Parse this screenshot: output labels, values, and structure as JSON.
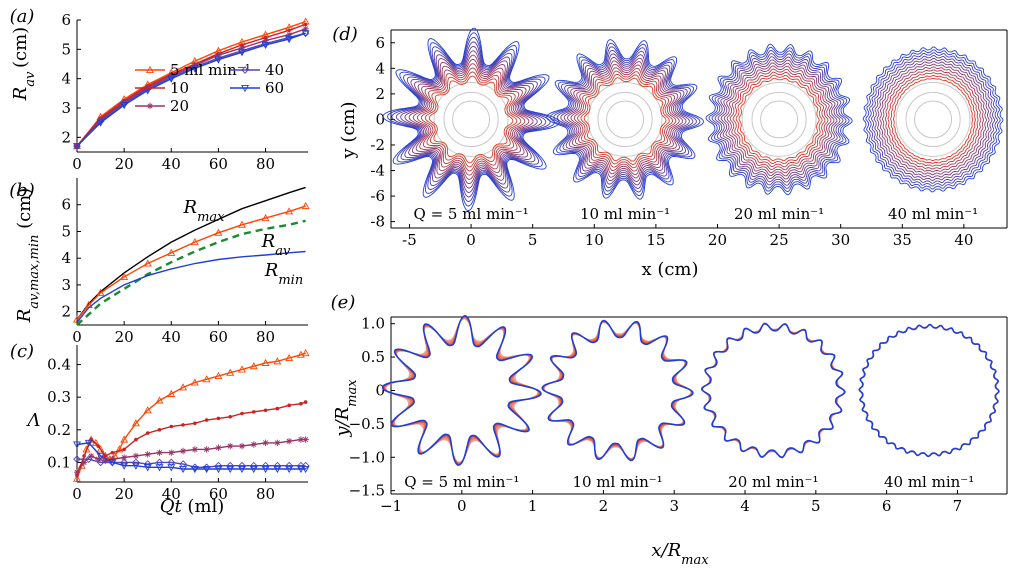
{
  "chart_data": [
    {
      "id": "a",
      "type": "line",
      "panel_label": "(a)",
      "ylabel": "R_av (cm)",
      "xlabel": "",
      "xlim": [
        0,
        98
      ],
      "ylim": [
        1.5,
        6
      ],
      "xticks": [
        0,
        20,
        40,
        60,
        80
      ],
      "yticks": [
        2,
        3,
        4,
        5,
        6
      ],
      "legend": [
        {
          "label": "5 ml min⁻¹",
          "color": "#ff4500",
          "marker": "triangle"
        },
        {
          "label": "10",
          "color": "#cc2222",
          "marker": "dot"
        },
        {
          "label": "20",
          "color": "#993366",
          "marker": "star"
        },
        {
          "label": "40",
          "color": "#5544bb",
          "marker": "diamond"
        },
        {
          "label": "60",
          "color": "#1f3fd6",
          "marker": "triangle-down"
        }
      ],
      "series": [
        {
          "name": "5 ml min⁻¹",
          "color": "#ff4500",
          "x": [
            0,
            10,
            20,
            30,
            40,
            50,
            60,
            70,
            80,
            90,
            97
          ],
          "y": [
            1.7,
            2.7,
            3.3,
            3.8,
            4.2,
            4.6,
            4.95,
            5.25,
            5.5,
            5.75,
            5.95
          ]
        },
        {
          "name": "10",
          "color": "#cc2222",
          "x": [
            0,
            10,
            20,
            30,
            40,
            50,
            60,
            70,
            80,
            90,
            97
          ],
          "y": [
            1.7,
            2.65,
            3.25,
            3.75,
            4.15,
            4.5,
            4.85,
            5.15,
            5.4,
            5.65,
            5.85
          ]
        },
        {
          "name": "20",
          "color": "#993366",
          "x": [
            0,
            10,
            20,
            30,
            40,
            50,
            60,
            70,
            80,
            90,
            97
          ],
          "y": [
            1.7,
            2.6,
            3.2,
            3.7,
            4.1,
            4.45,
            4.8,
            5.05,
            5.3,
            5.5,
            5.7
          ]
        },
        {
          "name": "40",
          "color": "#5544bb",
          "x": [
            0,
            10,
            20,
            30,
            40,
            50,
            60,
            70,
            80,
            90,
            97
          ],
          "y": [
            1.7,
            2.55,
            3.15,
            3.65,
            4.05,
            4.4,
            4.7,
            4.95,
            5.2,
            5.4,
            5.55
          ]
        },
        {
          "name": "60",
          "color": "#1f3fd6",
          "x": [
            0,
            10,
            20,
            30,
            40,
            50,
            60,
            70,
            80,
            90,
            97
          ],
          "y": [
            1.7,
            2.5,
            3.1,
            3.6,
            4.0,
            4.35,
            4.65,
            4.9,
            5.15,
            5.35,
            5.55
          ]
        }
      ]
    },
    {
      "id": "b",
      "type": "line",
      "panel_label": "(b)",
      "ylabel": "R_av,max,min (cm)",
      "xlabel": "",
      "xlim": [
        0,
        98
      ],
      "ylim": [
        1.5,
        7
      ],
      "xticks": [
        0,
        20,
        40,
        60,
        80
      ],
      "yticks": [
        2,
        3,
        4,
        5,
        6
      ],
      "annotations": [
        "R_max",
        "R_av",
        "R_min"
      ],
      "series": [
        {
          "name": "R_max",
          "color": "#000000",
          "x": [
            0,
            5,
            10,
            20,
            30,
            40,
            50,
            60,
            70,
            80,
            90,
            97
          ],
          "y": [
            1.7,
            2.3,
            2.75,
            3.45,
            4.05,
            4.6,
            5.05,
            5.45,
            5.85,
            6.15,
            6.45,
            6.65
          ]
        },
        {
          "name": "R_av",
          "color": "#ff4500",
          "x": [
            0,
            5,
            10,
            20,
            30,
            40,
            50,
            60,
            70,
            80,
            90,
            97
          ],
          "y": [
            1.7,
            2.25,
            2.7,
            3.3,
            3.8,
            4.2,
            4.6,
            4.95,
            5.25,
            5.5,
            5.75,
            5.95
          ]
        },
        {
          "name": "",
          "color": "#1a8a2e",
          "dashed": true,
          "x": [
            0,
            5,
            10,
            20,
            30,
            40,
            50,
            60,
            70,
            80,
            90,
            97
          ],
          "y": [
            1.5,
            1.9,
            2.3,
            2.85,
            3.4,
            3.85,
            4.25,
            4.6,
            4.9,
            5.1,
            5.25,
            5.4
          ]
        },
        {
          "name": "R_min",
          "color": "#1f3fd6",
          "x": [
            0,
            5,
            10,
            20,
            30,
            40,
            50,
            60,
            70,
            80,
            90,
            97
          ],
          "y": [
            1.6,
            2.15,
            2.5,
            3.0,
            3.35,
            3.6,
            3.8,
            3.95,
            4.05,
            4.12,
            4.2,
            4.25
          ]
        }
      ]
    },
    {
      "id": "c",
      "type": "line",
      "panel_label": "(c)",
      "ylabel": "Λ",
      "xlabel": "Qt (ml)",
      "xlim": [
        0,
        98
      ],
      "ylim": [
        0.04,
        0.46
      ],
      "xticks": [
        0,
        20,
        40,
        60,
        80
      ],
      "yticks": [
        0.1,
        0.2,
        0.3,
        0.4
      ],
      "series": [
        {
          "name": "5 ml min⁻¹",
          "color": "#ff4500",
          "x": [
            0,
            2,
            4,
            6,
            8,
            10,
            12,
            14,
            16,
            18,
            20,
            25,
            30,
            35,
            40,
            45,
            50,
            55,
            60,
            65,
            70,
            75,
            80,
            85,
            90,
            95,
            97
          ],
          "y": [
            0.05,
            0.09,
            0.14,
            0.17,
            0.16,
            0.14,
            0.12,
            0.11,
            0.12,
            0.14,
            0.17,
            0.22,
            0.26,
            0.29,
            0.31,
            0.33,
            0.345,
            0.355,
            0.365,
            0.375,
            0.385,
            0.395,
            0.405,
            0.41,
            0.42,
            0.43,
            0.435
          ]
        },
        {
          "name": "10",
          "color": "#cc2222",
          "x": [
            0,
            3,
            6,
            9,
            12,
            15,
            20,
            25,
            30,
            35,
            40,
            45,
            50,
            55,
            60,
            65,
            70,
            75,
            80,
            85,
            90,
            95,
            97
          ],
          "y": [
            0.06,
            0.12,
            0.17,
            0.15,
            0.12,
            0.13,
            0.14,
            0.17,
            0.19,
            0.2,
            0.21,
            0.215,
            0.22,
            0.23,
            0.235,
            0.24,
            0.25,
            0.255,
            0.26,
            0.265,
            0.275,
            0.28,
            0.285
          ]
        },
        {
          "name": "20",
          "color": "#993366",
          "x": [
            0,
            3,
            6,
            9,
            12,
            15,
            20,
            25,
            30,
            35,
            40,
            45,
            50,
            55,
            60,
            65,
            70,
            75,
            80,
            85,
            90,
            95,
            97
          ],
          "y": [
            0.07,
            0.1,
            0.12,
            0.11,
            0.105,
            0.11,
            0.115,
            0.12,
            0.125,
            0.13,
            0.13,
            0.135,
            0.14,
            0.14,
            0.145,
            0.15,
            0.15,
            0.155,
            0.16,
            0.16,
            0.165,
            0.17,
            0.17
          ]
        },
        {
          "name": "40",
          "color": "#5544bb",
          "x": [
            0,
            5,
            10,
            15,
            20,
            25,
            30,
            35,
            40,
            45,
            50,
            55,
            60,
            65,
            70,
            75,
            80,
            85,
            90,
            95,
            97
          ],
          "y": [
            0.11,
            0.11,
            0.1,
            0.1,
            0.1,
            0.1,
            0.095,
            0.1,
            0.1,
            0.095,
            0.085,
            0.085,
            0.09,
            0.09,
            0.09,
            0.09,
            0.09,
            0.09,
            0.09,
            0.09,
            0.09
          ]
        },
        {
          "name": "60",
          "color": "#1f3fd6",
          "x": [
            0,
            5,
            10,
            15,
            20,
            25,
            30,
            35,
            40,
            45,
            50,
            55,
            60,
            65,
            70,
            75,
            80,
            85,
            90,
            95,
            97
          ],
          "y": [
            0.155,
            0.16,
            0.12,
            0.1,
            0.09,
            0.09,
            0.085,
            0.085,
            0.085,
            0.08,
            0.08,
            0.08,
            0.08,
            0.08,
            0.08,
            0.08,
            0.08,
            0.08,
            0.08,
            0.08,
            0.08
          ]
        }
      ]
    },
    {
      "id": "d",
      "type": "line",
      "panel_label": "(d)",
      "xlabel": "x (cm)",
      "ylabel": "y (cm)",
      "xlim": [
        -6.5,
        43.5
      ],
      "ylim": [
        -8.5,
        7
      ],
      "xticks": [
        -5,
        0,
        5,
        10,
        15,
        20,
        25,
        30,
        35,
        40
      ],
      "yticks": [
        -8,
        -6,
        -4,
        -2,
        0,
        2,
        4,
        6
      ],
      "patterns": [
        {
          "label": "Q = 5 ml min⁻¹",
          "cx": 0,
          "cy": 0,
          "lobes": 12,
          "rmax": 6.2,
          "amp": 0.22
        },
        {
          "label": "10 ml min⁻¹",
          "cx": 12.5,
          "cy": 0,
          "lobes": 14,
          "rmax": 5.8,
          "amp": 0.14
        },
        {
          "label": "20 ml min⁻¹",
          "cx": 25,
          "cy": 0,
          "lobes": 22,
          "rmax": 5.7,
          "amp": 0.06
        },
        {
          "label": "40 ml min⁻¹",
          "cx": 37.5,
          "cy": 0,
          "lobes": 40,
          "rmax": 5.6,
          "amp": 0.02
        }
      ]
    },
    {
      "id": "e",
      "type": "line",
      "panel_label": "(e)",
      "xlabel": "x/R_max",
      "ylabel": "y/R_max",
      "xlim": [
        -1,
        7.7
      ],
      "ylim": [
        -1.55,
        1.1
      ],
      "xticks": [
        -1,
        0,
        1,
        2,
        3,
        4,
        5,
        6,
        7
      ],
      "yticks": [
        -1.5,
        -1.0,
        -0.5,
        0,
        0.5,
        1.0
      ],
      "ytick_labels": [
        "−1.5",
        "−1.0",
        "−0.5",
        "0",
        "0.5",
        "1.0"
      ],
      "xtick_labels": [
        "−1",
        "0",
        "1",
        "2",
        "3",
        "4",
        "5",
        "6",
        "7"
      ],
      "patterns": [
        {
          "label": "Q = 5 ml min⁻¹",
          "cx": 0,
          "cy": 0,
          "lobes": 12,
          "amp": 0.22
        },
        {
          "label": "10 ml min⁻¹",
          "cx": 2.2,
          "cy": 0,
          "lobes": 14,
          "amp": 0.14
        },
        {
          "label": "20 ml min⁻¹",
          "cx": 4.4,
          "cy": 0,
          "lobes": 22,
          "amp": 0.06
        },
        {
          "label": "40 ml min⁻¹",
          "cx": 6.6,
          "cy": 0,
          "lobes": 40,
          "amp": 0.025
        }
      ]
    }
  ]
}
